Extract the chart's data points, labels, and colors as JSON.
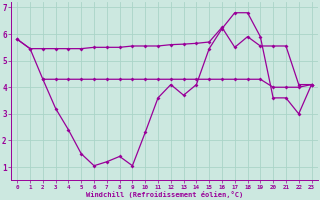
{
  "background_color": "#cce8e0",
  "grid_color": "#aad4c8",
  "line_color": "#990099",
  "xlabel": "Windchill (Refroidissement éolien,°C)",
  "xlim_min": -0.5,
  "xlim_max": 23.5,
  "ylim_min": 0.5,
  "ylim_max": 7.2,
  "yticks": [
    1,
    2,
    3,
    4,
    5,
    6,
    7
  ],
  "xticks": [
    0,
    1,
    2,
    3,
    4,
    5,
    6,
    7,
    8,
    9,
    10,
    11,
    12,
    13,
    14,
    15,
    16,
    17,
    18,
    19,
    20,
    21,
    22,
    23
  ],
  "line1_x": [
    0,
    1,
    2,
    3,
    4,
    5,
    6,
    7,
    8,
    9,
    10,
    11,
    12,
    13,
    14,
    15,
    16,
    17,
    18,
    19,
    20,
    21,
    22,
    23
  ],
  "line1_y": [
    5.8,
    5.45,
    5.45,
    5.45,
    5.45,
    5.45,
    5.5,
    5.5,
    5.5,
    5.55,
    5.55,
    5.55,
    5.6,
    5.62,
    5.65,
    5.7,
    6.25,
    5.5,
    5.9,
    5.55,
    5.55,
    5.55,
    4.1,
    4.1
  ],
  "line2_x": [
    2,
    3,
    4,
    5,
    6,
    7,
    8,
    9,
    10,
    11,
    12,
    13,
    14,
    15,
    16,
    17,
    18,
    19,
    20,
    21,
    22,
    23
  ],
  "line2_y": [
    4.3,
    4.3,
    4.3,
    4.3,
    4.3,
    4.3,
    4.3,
    4.3,
    4.3,
    4.3,
    4.3,
    4.3,
    4.3,
    4.3,
    4.3,
    4.3,
    4.3,
    4.3,
    4.0,
    4.0,
    4.0,
    4.1
  ],
  "line3_x": [
    0,
    1,
    2,
    3,
    4,
    5,
    6,
    7,
    8,
    9,
    10,
    11,
    12,
    13,
    14,
    15,
    16,
    17,
    18,
    19,
    20,
    21,
    22,
    23
  ],
  "line3_y": [
    5.8,
    5.45,
    4.3,
    3.2,
    2.4,
    1.5,
    1.05,
    1.2,
    1.4,
    1.05,
    2.3,
    3.6,
    4.1,
    3.7,
    4.1,
    5.45,
    6.2,
    6.8,
    6.8,
    5.9,
    3.6,
    3.6,
    3.0,
    4.1
  ]
}
